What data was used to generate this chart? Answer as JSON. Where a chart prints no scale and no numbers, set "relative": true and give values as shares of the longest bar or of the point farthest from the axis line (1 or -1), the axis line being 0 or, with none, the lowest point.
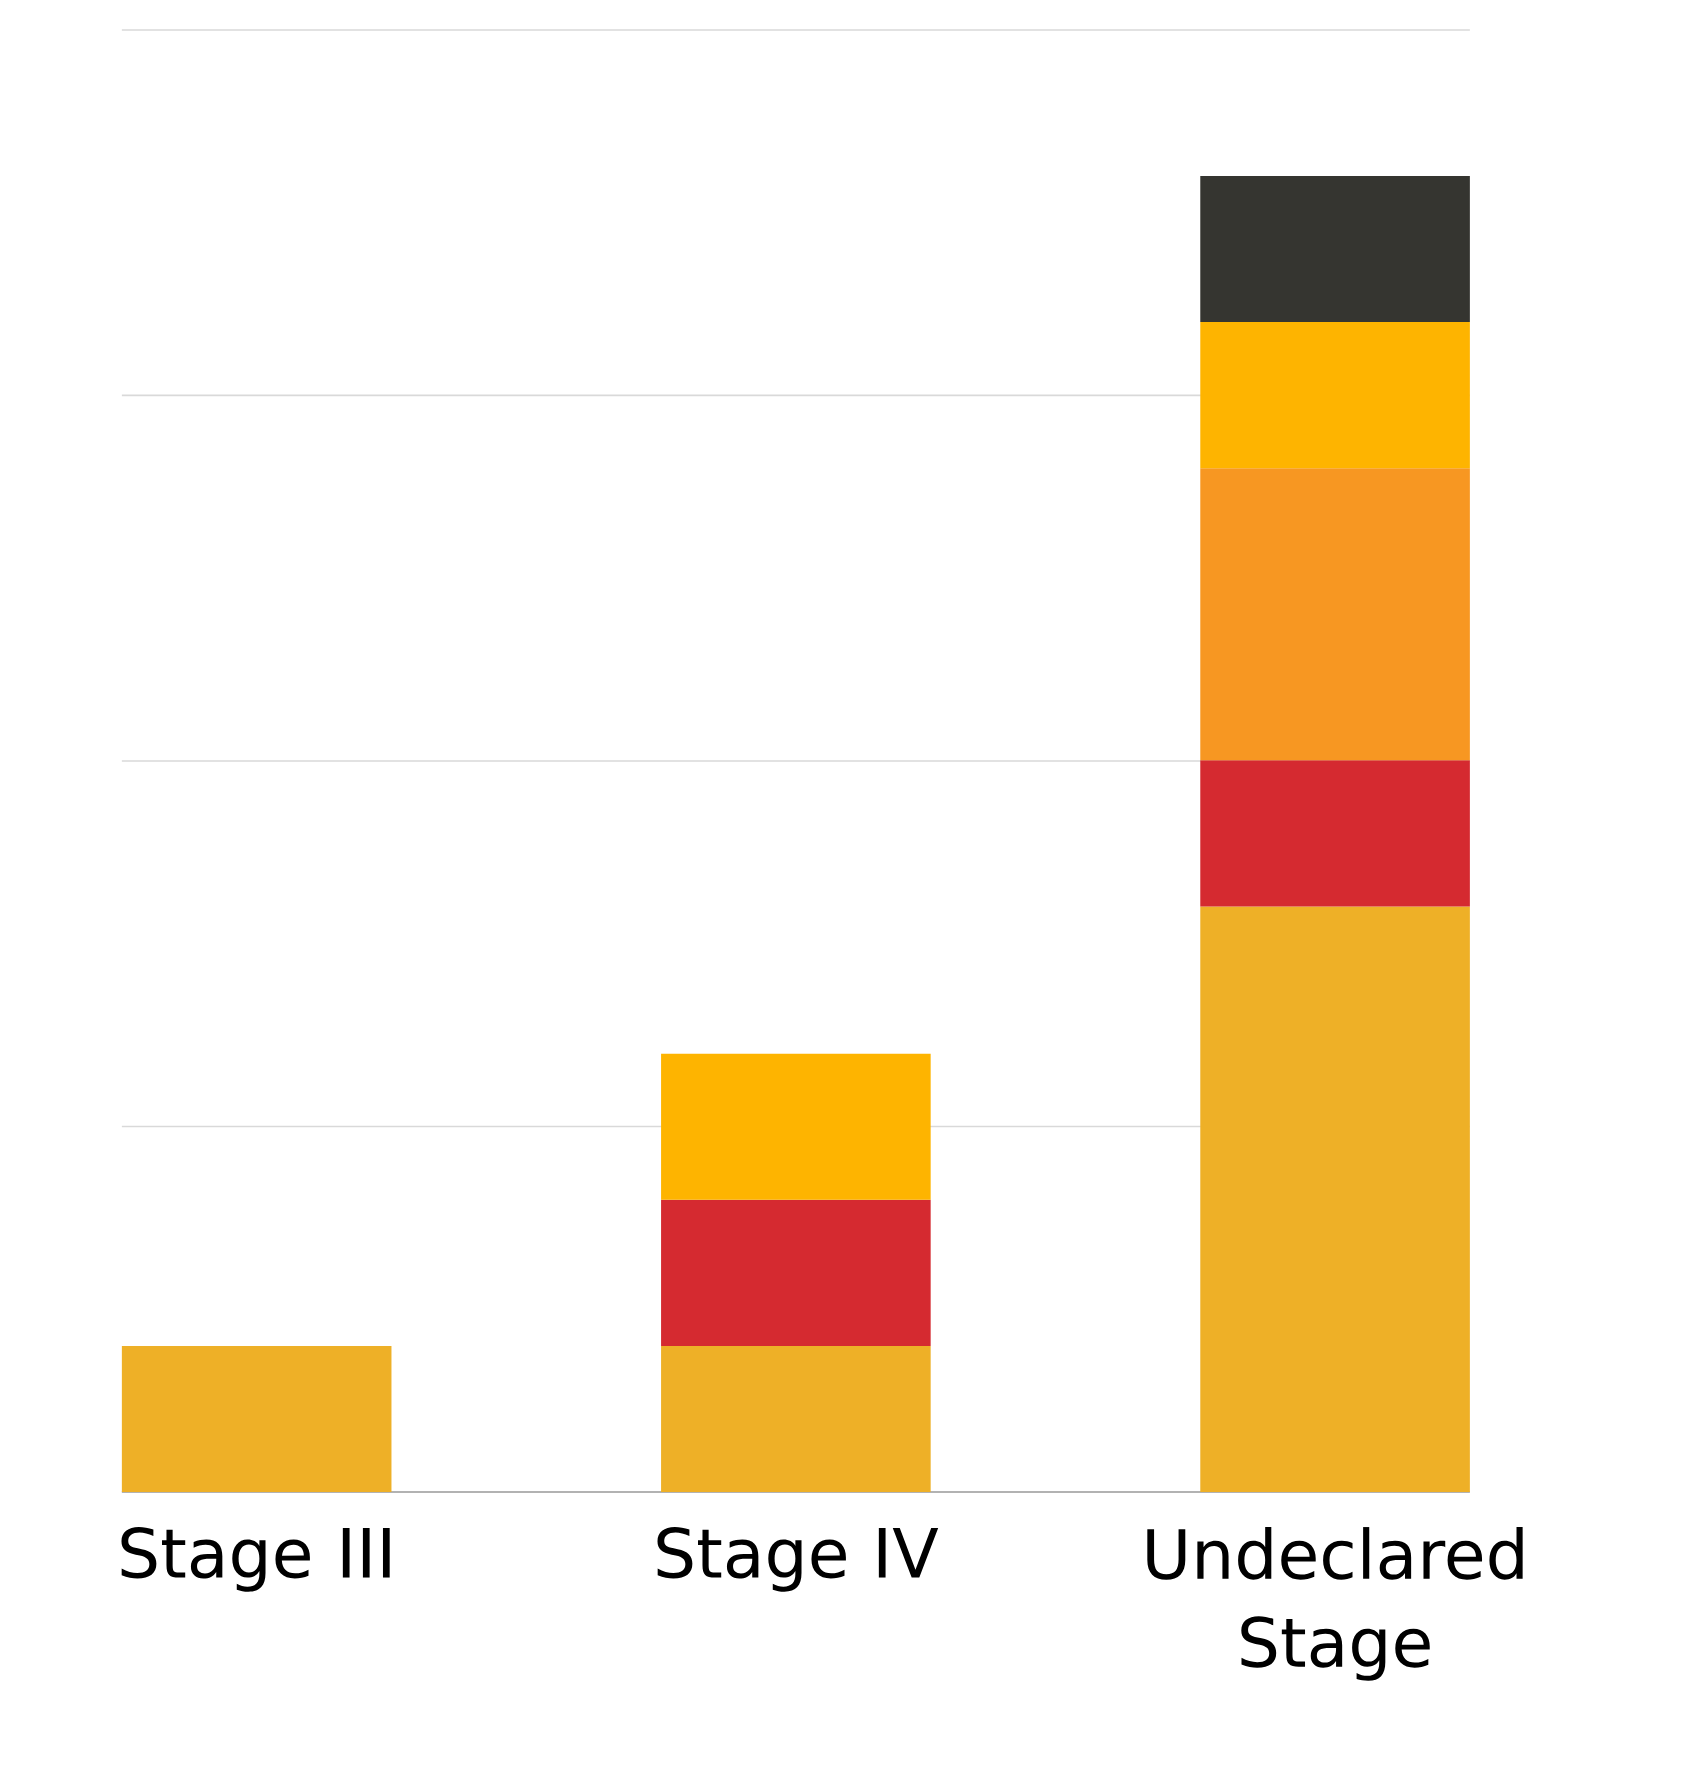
{
  "chart_data": {
    "type": "bar",
    "stacked": true,
    "relative": true,
    "grid": "y",
    "categories": [
      "Stage III",
      "Stage IV",
      "Undeclared Stage"
    ],
    "series": [
      {
        "color": "#eeb027",
        "values": [
          0.111,
          0.111,
          0.445
        ]
      },
      {
        "color": "#d52a30",
        "values": [
          null,
          0.111,
          0.111
        ]
      },
      {
        "color": "#f79722",
        "values": [
          null,
          null,
          0.222
        ]
      },
      {
        "color": "#feb400",
        "values": [
          null,
          0.111,
          0.111
        ]
      },
      {
        "color": "#353530",
        "values": [
          null,
          null,
          0.111
        ]
      }
    ]
  }
}
